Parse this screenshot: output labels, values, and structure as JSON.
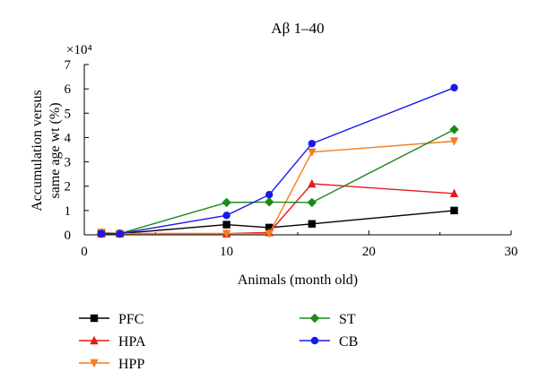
{
  "chart_data": {
    "type": "line",
    "title": "Aβ 1–40",
    "xlabel": "Animals (month old)",
    "ylabel_lines": [
      "Accumulation versus",
      "same age wt (%)"
    ],
    "y_multiplier": "×10⁴",
    "xlim": [
      0,
      30
    ],
    "ylim": [
      0,
      7
    ],
    "x_ticks": [
      "0",
      "10",
      "20",
      "30"
    ],
    "y_ticks": [
      "0",
      "1",
      "2",
      "3",
      "4",
      "5",
      "6",
      "7"
    ],
    "legend_position": "bottom-left",
    "series": [
      {
        "name": "PFC",
        "color": "#000000",
        "marker": "square",
        "x": [
          1.2,
          2.5,
          10,
          13,
          16,
          26
        ],
        "y": [
          0.05,
          0.05,
          0.42,
          0.3,
          0.45,
          1.0
        ]
      },
      {
        "name": "HPA",
        "color": "#e31a1c",
        "marker": "triangle-up",
        "x": [
          1.2,
          2.5,
          10,
          13,
          16,
          26
        ],
        "y": [
          0.05,
          0.05,
          0.05,
          0.1,
          2.1,
          1.7
        ]
      },
      {
        "name": "HPP",
        "color": "#f57c1f",
        "marker": "triangle-down",
        "x": [
          1.2,
          2.5,
          10,
          13,
          16,
          26
        ],
        "y": [
          0.1,
          0.05,
          0.05,
          0.05,
          3.4,
          3.85
        ]
      },
      {
        "name": "ST",
        "color": "#1a8a1a",
        "marker": "diamond",
        "x": [
          1.2,
          2.5,
          10,
          13,
          16,
          26
        ],
        "y": [
          0.05,
          0.05,
          1.33,
          1.35,
          1.33,
          4.33
        ]
      },
      {
        "name": "CB",
        "color": "#1a1ae6",
        "marker": "circle",
        "x": [
          1.2,
          2.5,
          10,
          13,
          16,
          26
        ],
        "y": [
          0.05,
          0.05,
          0.8,
          1.65,
          3.75,
          6.05
        ]
      }
    ],
    "legend_columns": [
      [
        "PFC",
        "HPA",
        "HPP"
      ],
      [
        "ST",
        "CB"
      ]
    ]
  }
}
